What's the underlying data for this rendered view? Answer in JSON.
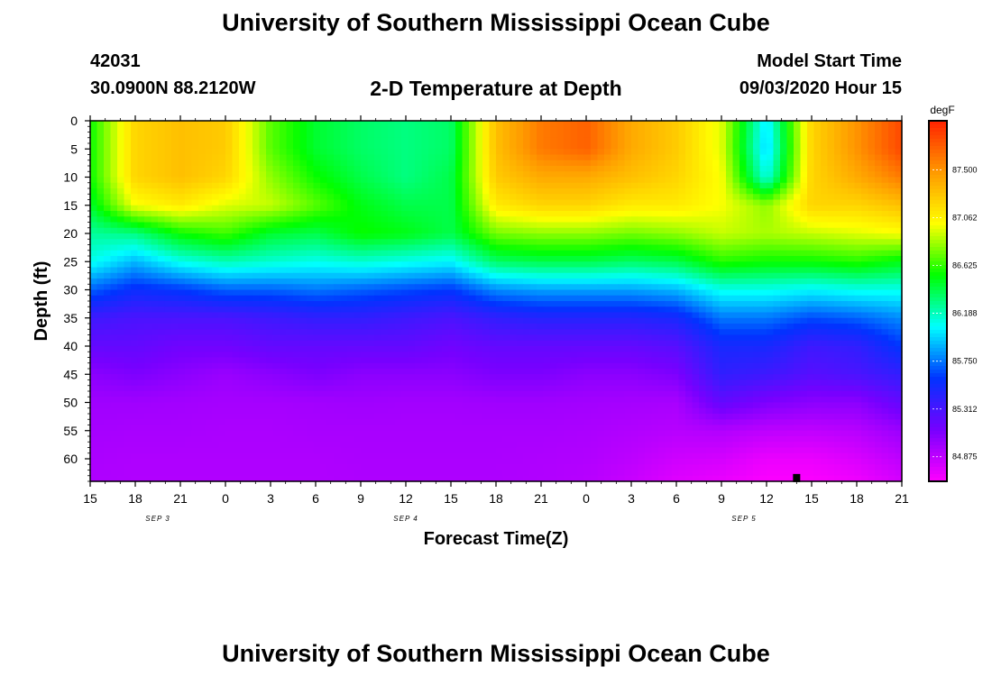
{
  "page_title": "University of Southern Mississippi Ocean Cube",
  "footer_title": "University of Southern Mississippi Ocean Cube",
  "station": {
    "id": "42031",
    "coords": "30.0900N 88.2120W"
  },
  "model": {
    "label": "Model Start Time",
    "start": "09/03/2020 Hour 15"
  },
  "colors": {
    "scale_stops": [
      "#ff00ff",
      "#7700ff",
      "#0033ff",
      "#00ffff",
      "#00ff00",
      "#ffff00",
      "#ff9900",
      "#ff2200"
    ]
  },
  "chart_data": {
    "type": "heatmap",
    "title": "2-D Temperature at Depth",
    "xlabel": "Forecast Time(Z)",
    "ylabel": "Depth (ft)",
    "x_tick_labels": [
      "15",
      "18",
      "21",
      "0",
      "3",
      "6",
      "9",
      "12",
      "15",
      "18",
      "21",
      "0",
      "3",
      "6",
      "9",
      "12",
      "15",
      "18",
      "21"
    ],
    "x_hours_from_start": [
      0,
      3,
      6,
      9,
      12,
      15,
      18,
      21,
      24,
      27,
      30,
      33,
      36,
      39,
      42,
      45,
      48,
      51,
      54
    ],
    "x_range_hours": [
      0,
      54
    ],
    "date_labels": [
      {
        "text": "SEP 3",
        "hour": 4.5
      },
      {
        "text": "SEP 4",
        "hour": 21
      },
      {
        "text": "SEP 5",
        "hour": 43.5
      }
    ],
    "y_ticks": [
      0,
      5,
      10,
      15,
      20,
      25,
      30,
      35,
      40,
      45,
      50,
      55,
      60
    ],
    "y_range_ft": [
      0,
      64
    ],
    "colorbar": {
      "units": "degF",
      "ticks": [
        84.875,
        85.312,
        85.75,
        86.188,
        86.625,
        87.062,
        87.5
      ],
      "tick_labels": [
        "84.875",
        "85.312",
        "85.750",
        "86.188",
        "86.625",
        "87.062",
        "87.500"
      ],
      "range": [
        84.65,
        87.95
      ]
    },
    "marker": {
      "hour": 47,
      "depth": 63.5
    },
    "depths_ft": [
      0,
      5,
      10,
      15,
      20,
      25,
      30,
      35,
      40,
      45,
      50,
      55,
      60,
      64
    ],
    "hours": [
      0,
      3,
      6,
      9,
      12,
      15,
      18,
      21,
      24,
      27,
      30,
      33,
      36,
      39,
      42,
      45,
      48,
      51,
      54
    ],
    "temps_degF": [
      [
        86.55,
        87.2,
        87.3,
        87.25,
        86.7,
        86.45,
        86.35,
        86.3,
        86.35,
        87.3,
        87.6,
        87.7,
        87.4,
        87.25,
        86.95,
        86.0,
        87.2,
        87.5,
        87.8
      ],
      [
        86.55,
        87.2,
        87.3,
        87.25,
        86.7,
        86.45,
        86.35,
        86.3,
        86.35,
        87.3,
        87.6,
        87.7,
        87.4,
        87.25,
        86.95,
        85.95,
        87.2,
        87.5,
        87.8
      ],
      [
        86.55,
        87.2,
        87.3,
        87.2,
        86.8,
        86.55,
        86.4,
        86.3,
        86.4,
        87.25,
        87.4,
        87.4,
        87.3,
        87.2,
        87.0,
        86.1,
        87.2,
        87.4,
        87.6
      ],
      [
        86.45,
        87.0,
        87.1,
        86.95,
        86.9,
        86.7,
        86.5,
        86.4,
        86.4,
        87.1,
        87.2,
        87.2,
        87.1,
        87.1,
        87.0,
        86.8,
        87.2,
        87.2,
        87.3
      ],
      [
        86.25,
        86.3,
        86.55,
        86.65,
        86.45,
        86.4,
        86.55,
        86.5,
        86.4,
        86.75,
        86.8,
        86.8,
        86.75,
        86.8,
        86.9,
        86.85,
        86.9,
        86.95,
        87.0
      ],
      [
        86.1,
        85.9,
        86.1,
        86.2,
        86.15,
        86.1,
        86.15,
        86.1,
        86.05,
        86.35,
        86.4,
        86.4,
        86.35,
        86.4,
        86.6,
        86.55,
        86.55,
        86.6,
        86.5
      ],
      [
        85.7,
        85.55,
        85.6,
        85.7,
        85.7,
        85.75,
        85.7,
        85.65,
        85.6,
        85.8,
        85.85,
        85.85,
        85.85,
        85.9,
        86.1,
        86.1,
        86.05,
        86.1,
        86.1
      ],
      [
        85.35,
        85.3,
        85.3,
        85.3,
        85.35,
        85.4,
        85.4,
        85.35,
        85.3,
        85.4,
        85.45,
        85.45,
        85.45,
        85.5,
        85.75,
        85.75,
        85.65,
        85.7,
        85.8
      ],
      [
        85.2,
        85.2,
        85.15,
        85.15,
        85.2,
        85.2,
        85.2,
        85.2,
        85.15,
        85.2,
        85.2,
        85.2,
        85.2,
        85.25,
        85.5,
        85.5,
        85.35,
        85.4,
        85.6
      ],
      [
        85.05,
        85.1,
        85.05,
        85.0,
        85.05,
        85.1,
        85.05,
        85.05,
        85.05,
        85.1,
        85.1,
        85.05,
        85.05,
        85.1,
        85.4,
        85.35,
        85.25,
        85.3,
        85.4
      ],
      [
        84.98,
        84.98,
        84.97,
        84.96,
        84.96,
        84.97,
        84.98,
        84.97,
        84.97,
        84.98,
        84.98,
        84.97,
        84.96,
        84.95,
        85.2,
        85.1,
        85.05,
        85.05,
        85.2
      ],
      [
        84.96,
        84.95,
        84.95,
        84.94,
        84.94,
        84.95,
        84.95,
        84.95,
        84.95,
        84.95,
        84.95,
        84.94,
        84.92,
        84.9,
        84.92,
        84.88,
        84.87,
        84.9,
        85.0
      ],
      [
        84.94,
        84.93,
        84.93,
        84.93,
        84.93,
        84.93,
        84.94,
        84.94,
        84.94,
        84.94,
        84.93,
        84.92,
        84.88,
        84.82,
        84.8,
        84.72,
        84.72,
        84.78,
        84.88
      ],
      [
        84.93,
        84.92,
        84.92,
        84.92,
        84.92,
        84.92,
        84.93,
        84.93,
        84.93,
        84.93,
        84.92,
        84.9,
        84.84,
        84.76,
        84.72,
        84.66,
        84.66,
        84.7,
        84.8
      ]
    ]
  }
}
